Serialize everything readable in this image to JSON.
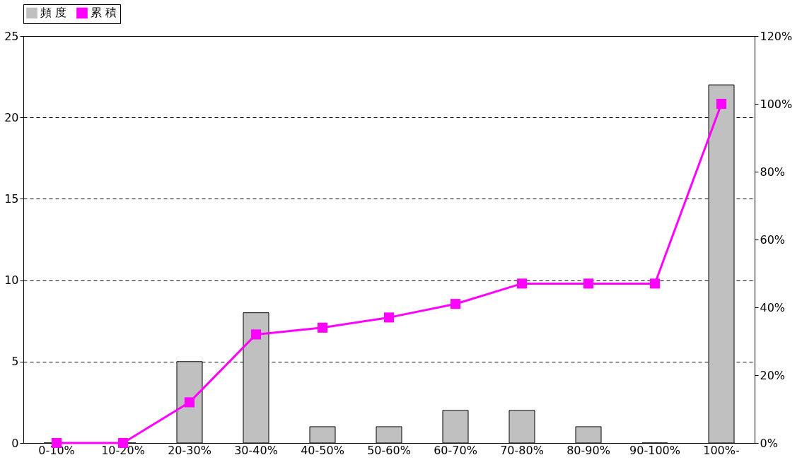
{
  "chart_data": {
    "type": "bar",
    "categories": [
      "0-10%",
      "10-20%",
      "20-30%",
      "30-40%",
      "40-50%",
      "50-60%",
      "60-70%",
      "70-80%",
      "80-90%",
      "90-100%",
      "100%-"
    ],
    "series": [
      {
        "name": "頻 度",
        "color": "#c0c0c0",
        "values": [
          0,
          0,
          5,
          8,
          1,
          1,
          2,
          2,
          1,
          0,
          22
        ]
      },
      {
        "name": "累 積",
        "type": "line",
        "axis": "y2",
        "color": "#ff00ff",
        "marker": "square",
        "values": [
          0,
          0,
          12,
          32,
          34,
          37,
          41,
          47,
          47,
          47,
          100
        ]
      }
    ],
    "ylim": [
      0,
      25
    ],
    "yticks": [
      0,
      5,
      10,
      15,
      20,
      25
    ],
    "y2lim": [
      0,
      120
    ],
    "y2ticks": [
      {
        "value": 0,
        "label": "0%"
      },
      {
        "value": 20,
        "label": "20%"
      },
      {
        "value": 40,
        "label": "40%"
      },
      {
        "value": 60,
        "label": "60%"
      },
      {
        "value": 80,
        "label": "80%"
      },
      {
        "value": 100,
        "label": "100%"
      },
      {
        "value": 120,
        "label": "120%"
      }
    ],
    "grid": "y",
    "legend": "top"
  }
}
